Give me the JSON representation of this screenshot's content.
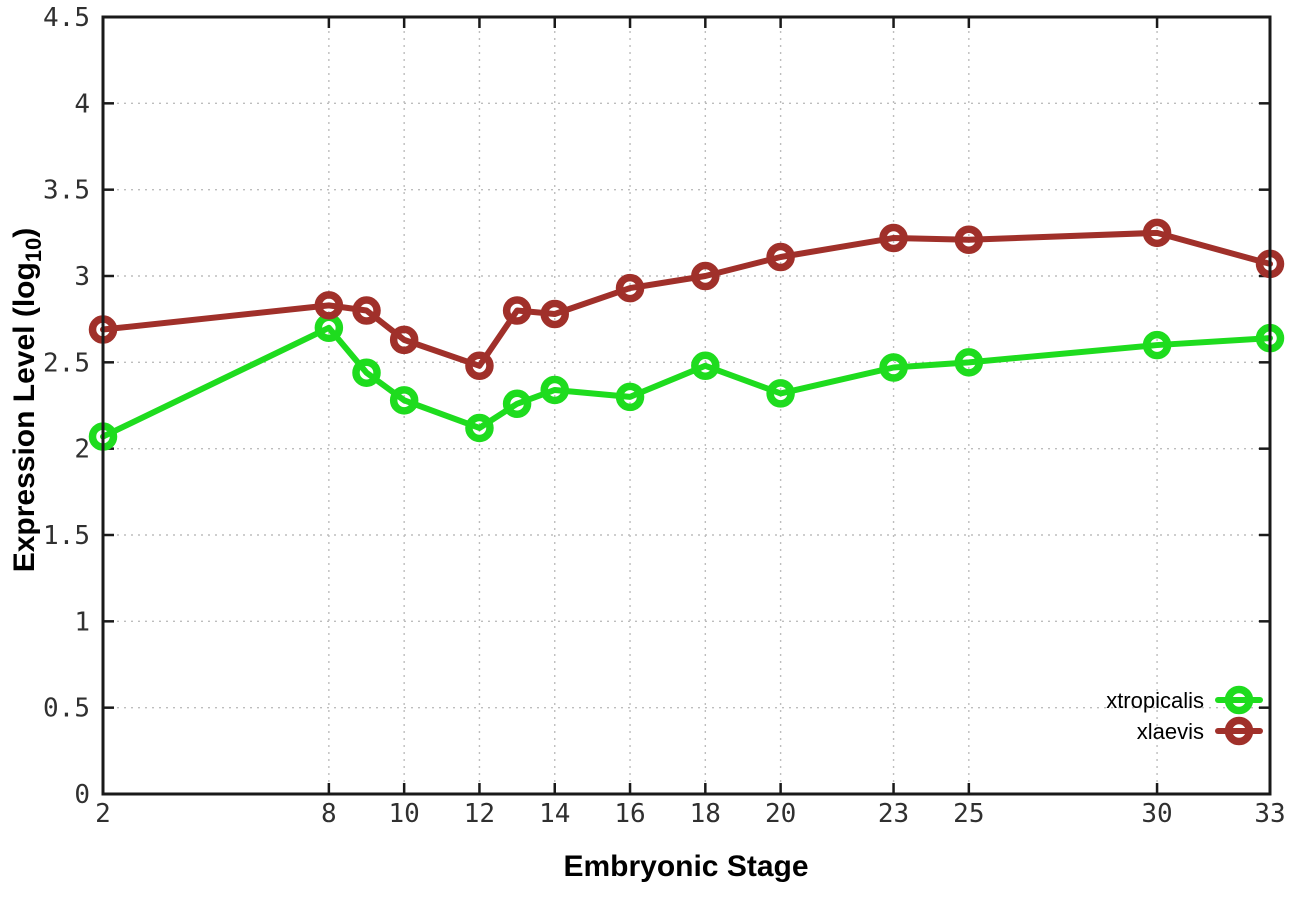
{
  "figure": {
    "background_color": "#ffffff",
    "axis_color": "#1a1a1a",
    "grid_color": "#bdbdbd",
    "tick_label_color": "#303030"
  },
  "chart_data": {
    "type": "line",
    "title": "",
    "xlabel": "Embryonic Stage",
    "ylabel": "Expression Level (log10)",
    "ylabel_parts": {
      "prefix": "Expression Level (log",
      "sub": "10",
      "suffix": ")"
    },
    "x": [
      2,
      8,
      9,
      10,
      12,
      13,
      14,
      16,
      18,
      20,
      23,
      25,
      30,
      33
    ],
    "series": [
      {
        "name": "xtropicalis",
        "color": "#1edc1e",
        "values": [
          2.07,
          2.7,
          2.44,
          2.28,
          2.12,
          2.26,
          2.34,
          2.3,
          2.48,
          2.32,
          2.47,
          2.5,
          2.6,
          2.64
        ]
      },
      {
        "name": "xlaevis",
        "color": "#a0302a",
        "values": [
          2.69,
          2.83,
          2.8,
          2.63,
          2.48,
          2.8,
          2.78,
          2.93,
          3.0,
          3.11,
          3.22,
          3.21,
          3.25,
          3.07
        ]
      }
    ],
    "xlim": [
      2,
      33
    ],
    "ylim": [
      0,
      4.5
    ],
    "xticks": [
      2,
      8,
      10,
      12,
      14,
      16,
      18,
      20,
      23,
      25,
      30,
      33
    ],
    "xtick_labels": [
      "2",
      "8",
      "10",
      "12",
      "14",
      "16",
      "18",
      "20",
      "23",
      "25",
      "30",
      "33"
    ],
    "yticks": [
      0,
      0.5,
      1,
      1.5,
      2,
      2.5,
      3,
      3.5,
      4,
      4.5
    ],
    "ytick_labels": [
      "0",
      "0.5",
      "1",
      "1.5",
      "2",
      "2.5",
      "3",
      "3.5",
      "4",
      "4.5"
    ],
    "grid": true,
    "grid_style": "dotted",
    "marker": "open-circle",
    "legend_position": "bottom-right-inside"
  }
}
